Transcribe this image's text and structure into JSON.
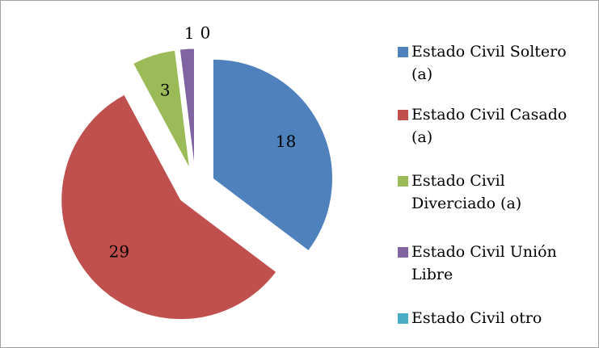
{
  "chart_data": {
    "type": "pie",
    "categories": [
      "Estado Civil Soltero (a)",
      "Estado Civil Casado (a)",
      "Estado Civil Diverciado (a)",
      "Estado Civil Unión Libre",
      "Estado Civil otro"
    ],
    "values": [
      18,
      29,
      3,
      1,
      0
    ],
    "colors": [
      "#4f81bd",
      "#c0504d",
      "#9bbb59",
      "#8064a2",
      "#4bacc6"
    ],
    "legend": "right",
    "exploded": true
  }
}
